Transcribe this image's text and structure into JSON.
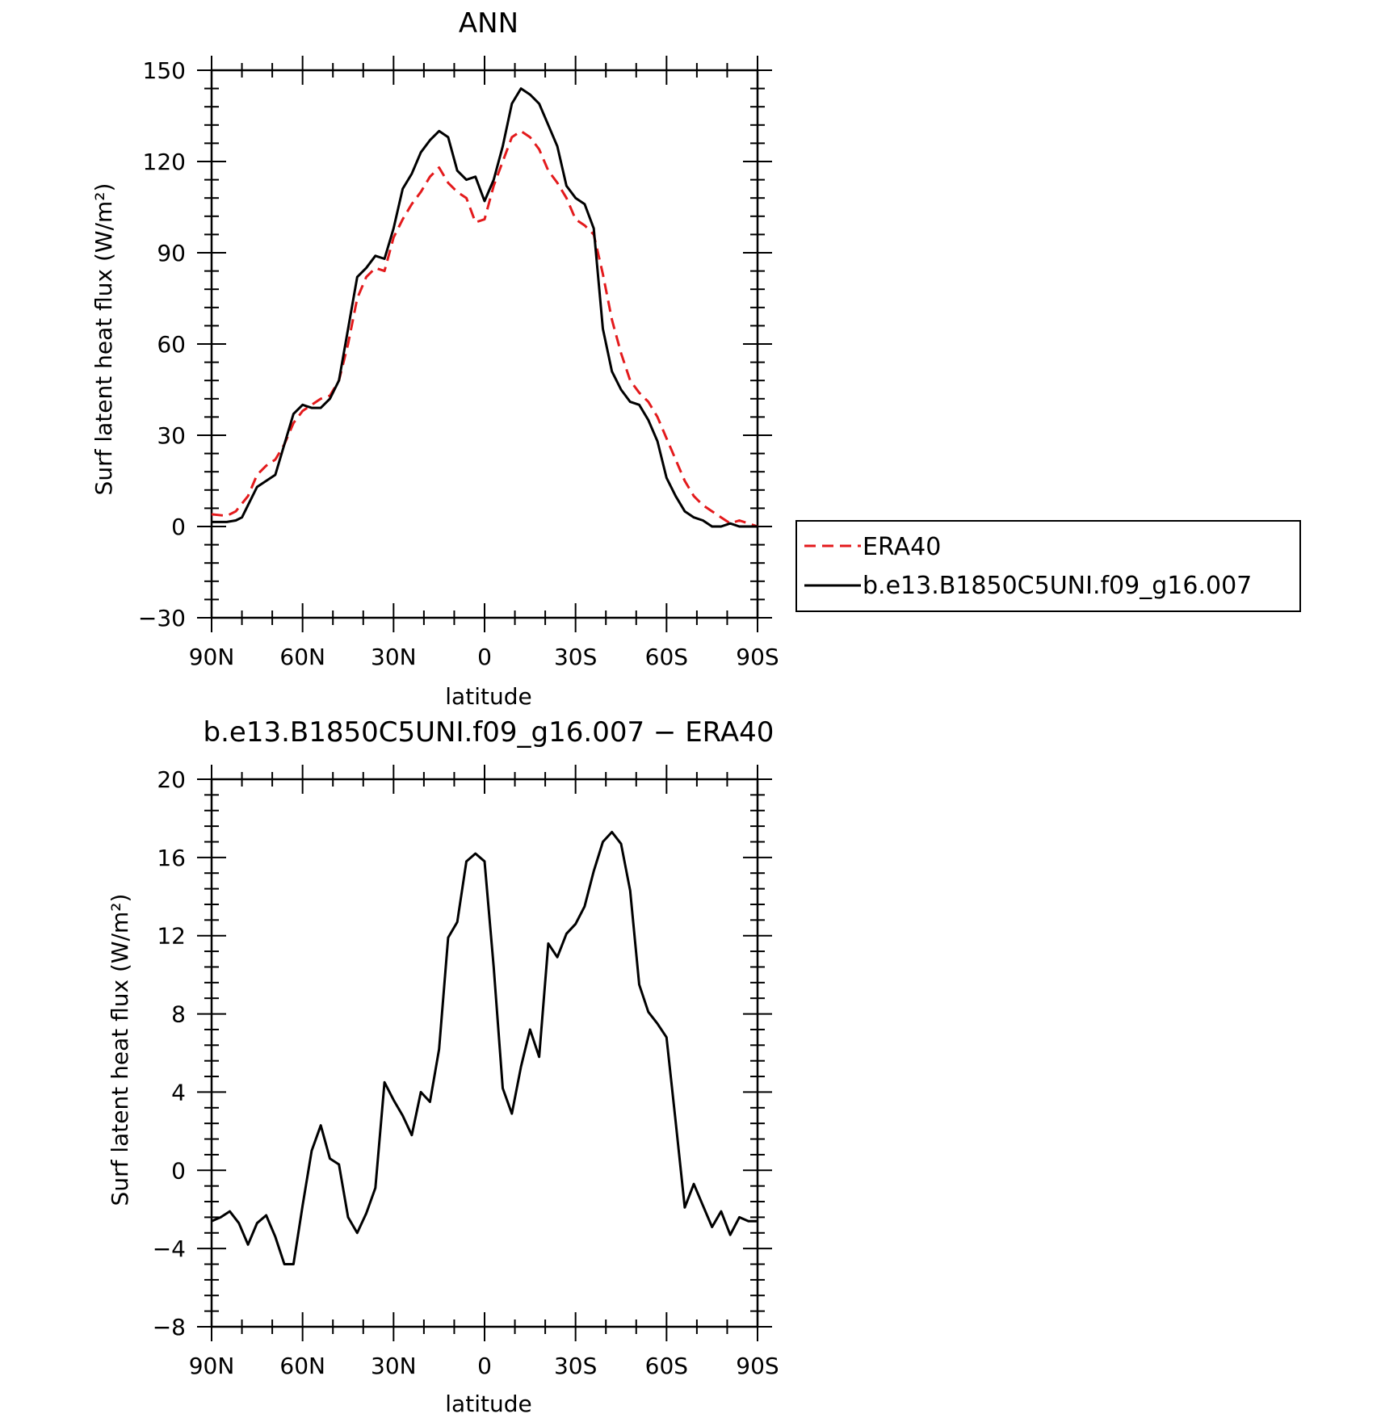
{
  "chart_data": [
    {
      "type": "line",
      "title": "ANN",
      "xlabel": "latitude",
      "ylabel": "Surf latent heat flux (W/m²)",
      "xlim": [
        -90,
        90
      ],
      "ylim": [
        -30,
        150
      ],
      "xticks": [
        {
          "value": -90,
          "label": "90N"
        },
        {
          "value": -60,
          "label": "60N"
        },
        {
          "value": -30,
          "label": "30N"
        },
        {
          "value": 0,
          "label": "0"
        },
        {
          "value": 30,
          "label": "30S"
        },
        {
          "value": 60,
          "label": "60S"
        },
        {
          "value": 90,
          "label": "90S"
        }
      ],
      "yticks": [
        {
          "value": -30,
          "label": "−30"
        },
        {
          "value": 0,
          "label": "0"
        },
        {
          "value": 30,
          "label": "30"
        },
        {
          "value": 60,
          "label": "60"
        },
        {
          "value": 90,
          "label": "90"
        },
        {
          "value": 120,
          "label": "120"
        },
        {
          "value": 150,
          "label": "150"
        }
      ],
      "legend": {
        "position": "right"
      },
      "series": [
        {
          "name": "ERA40",
          "color": "#e31a1c",
          "dash": "dashed",
          "x": [
            -90,
            -85,
            -82,
            -78,
            -75,
            -72,
            -69,
            -66,
            -63,
            -60,
            -57,
            -54,
            -51,
            -48,
            -45,
            -42,
            -39,
            -36,
            -33,
            -30,
            -27,
            -24,
            -21,
            -18,
            -15,
            -12,
            -9,
            -6,
            -3,
            0,
            3,
            6,
            9,
            12,
            15,
            18,
            21,
            24,
            27,
            30,
            33,
            36,
            39,
            42,
            45,
            48,
            51,
            54,
            57,
            60,
            63,
            66,
            69,
            72,
            75,
            78,
            81,
            84,
            87,
            90
          ],
          "values": [
            4,
            3.5,
            5,
            10,
            17,
            20,
            22,
            27,
            34,
            38,
            40,
            42,
            43,
            48,
            60,
            75,
            82,
            85,
            84,
            95,
            101,
            106,
            110,
            115,
            118,
            113,
            110,
            108,
            100,
            101,
            112,
            120,
            128,
            130,
            128,
            124,
            117,
            113,
            108,
            101,
            99,
            96,
            83,
            68,
            57,
            48,
            44,
            41,
            36,
            29,
            22,
            15,
            10,
            7,
            5,
            3,
            1,
            2,
            1,
            0
          ]
        },
        {
          "name": "b.e13.B1850C5UNI.f09_g16.007",
          "color": "#000000",
          "dash": "solid",
          "x": [
            -90,
            -85,
            -82,
            -80,
            -78,
            -75,
            -72,
            -69,
            -66,
            -63,
            -60,
            -57,
            -54,
            -51,
            -48,
            -45,
            -42,
            -39,
            -36,
            -33,
            -30,
            -27,
            -24,
            -21,
            -18,
            -15,
            -12,
            -9,
            -6,
            -3,
            0,
            3,
            6,
            9,
            12,
            15,
            18,
            21,
            24,
            27,
            30,
            33,
            36,
            39,
            42,
            45,
            48,
            51,
            54,
            57,
            60,
            63,
            66,
            69,
            72,
            75,
            78,
            81,
            84,
            87,
            90
          ],
          "values": [
            1.5,
            1.5,
            2,
            3,
            7,
            13,
            15,
            17,
            27,
            37,
            40,
            39,
            39,
            42,
            48,
            65,
            82,
            85,
            89,
            88,
            98,
            111,
            116,
            123,
            127,
            130,
            128,
            117,
            114,
            115,
            107,
            114,
            125,
            139,
            144,
            142,
            139,
            132,
            125,
            112,
            108,
            106,
            98,
            65,
            51,
            45,
            41,
            40,
            35,
            28,
            16,
            10,
            5,
            3,
            2,
            0,
            0,
            1,
            0,
            0,
            0
          ]
        }
      ]
    },
    {
      "type": "line",
      "title": "b.e13.B1850C5UNI.f09_g16.007 − ERA40",
      "xlabel": "latitude",
      "ylabel": "Surf latent heat flux (W/m²)",
      "xlim": [
        -90,
        90
      ],
      "ylim": [
        -8,
        20
      ],
      "xticks": [
        {
          "value": -90,
          "label": "90N"
        },
        {
          "value": -60,
          "label": "60N"
        },
        {
          "value": -30,
          "label": "30N"
        },
        {
          "value": 0,
          "label": "0"
        },
        {
          "value": 30,
          "label": "30S"
        },
        {
          "value": 60,
          "label": "60S"
        },
        {
          "value": 90,
          "label": "90S"
        }
      ],
      "yticks": [
        {
          "value": -8,
          "label": "−8"
        },
        {
          "value": -4,
          "label": "−4"
        },
        {
          "value": 0,
          "label": "0"
        },
        {
          "value": 4,
          "label": "4"
        },
        {
          "value": 8,
          "label": "8"
        },
        {
          "value": 12,
          "label": "12"
        },
        {
          "value": 16,
          "label": "16"
        },
        {
          "value": 20,
          "label": "20"
        }
      ],
      "series": [
        {
          "color": "#000000",
          "dash": "solid",
          "x": [
            -90,
            -87,
            -84,
            -81,
            -78,
            -75,
            -72,
            -69,
            -66,
            -63,
            -60,
            -57,
            -54,
            -51,
            -48,
            -45,
            -42,
            -39,
            -36,
            -33,
            -30,
            -27,
            -24,
            -21,
            -18,
            -15,
            -12,
            -9,
            -6,
            -3,
            0,
            3,
            6,
            9,
            12,
            15,
            18,
            21,
            24,
            27,
            30,
            33,
            36,
            39,
            42,
            45,
            48,
            51,
            54,
            57,
            60,
            63,
            66,
            69,
            72,
            75,
            78,
            81,
            84,
            87,
            90
          ],
          "values": [
            -2.6,
            -2.4,
            -2.1,
            -2.7,
            -3.8,
            -2.7,
            -2.3,
            -3.4,
            -4.8,
            -4.8,
            -1.8,
            1.0,
            2.3,
            0.6,
            0.3,
            -2.4,
            -3.2,
            -2.2,
            -0.9,
            4.5,
            3.6,
            2.8,
            1.8,
            4.0,
            3.5,
            6.2,
            11.9,
            12.7,
            15.8,
            16.2,
            15.8,
            10.4,
            4.2,
            2.9,
            5.3,
            7.2,
            5.8,
            11.6,
            10.9,
            12.1,
            12.6,
            13.5,
            15.3,
            16.8,
            17.3,
            16.7,
            14.3,
            9.5,
            8.1,
            7.5,
            6.8,
            2.5,
            -1.9,
            -0.7,
            -1.8,
            -2.9,
            -2.1,
            -3.3,
            -2.4,
            -2.6,
            -2.6
          ]
        }
      ]
    }
  ]
}
